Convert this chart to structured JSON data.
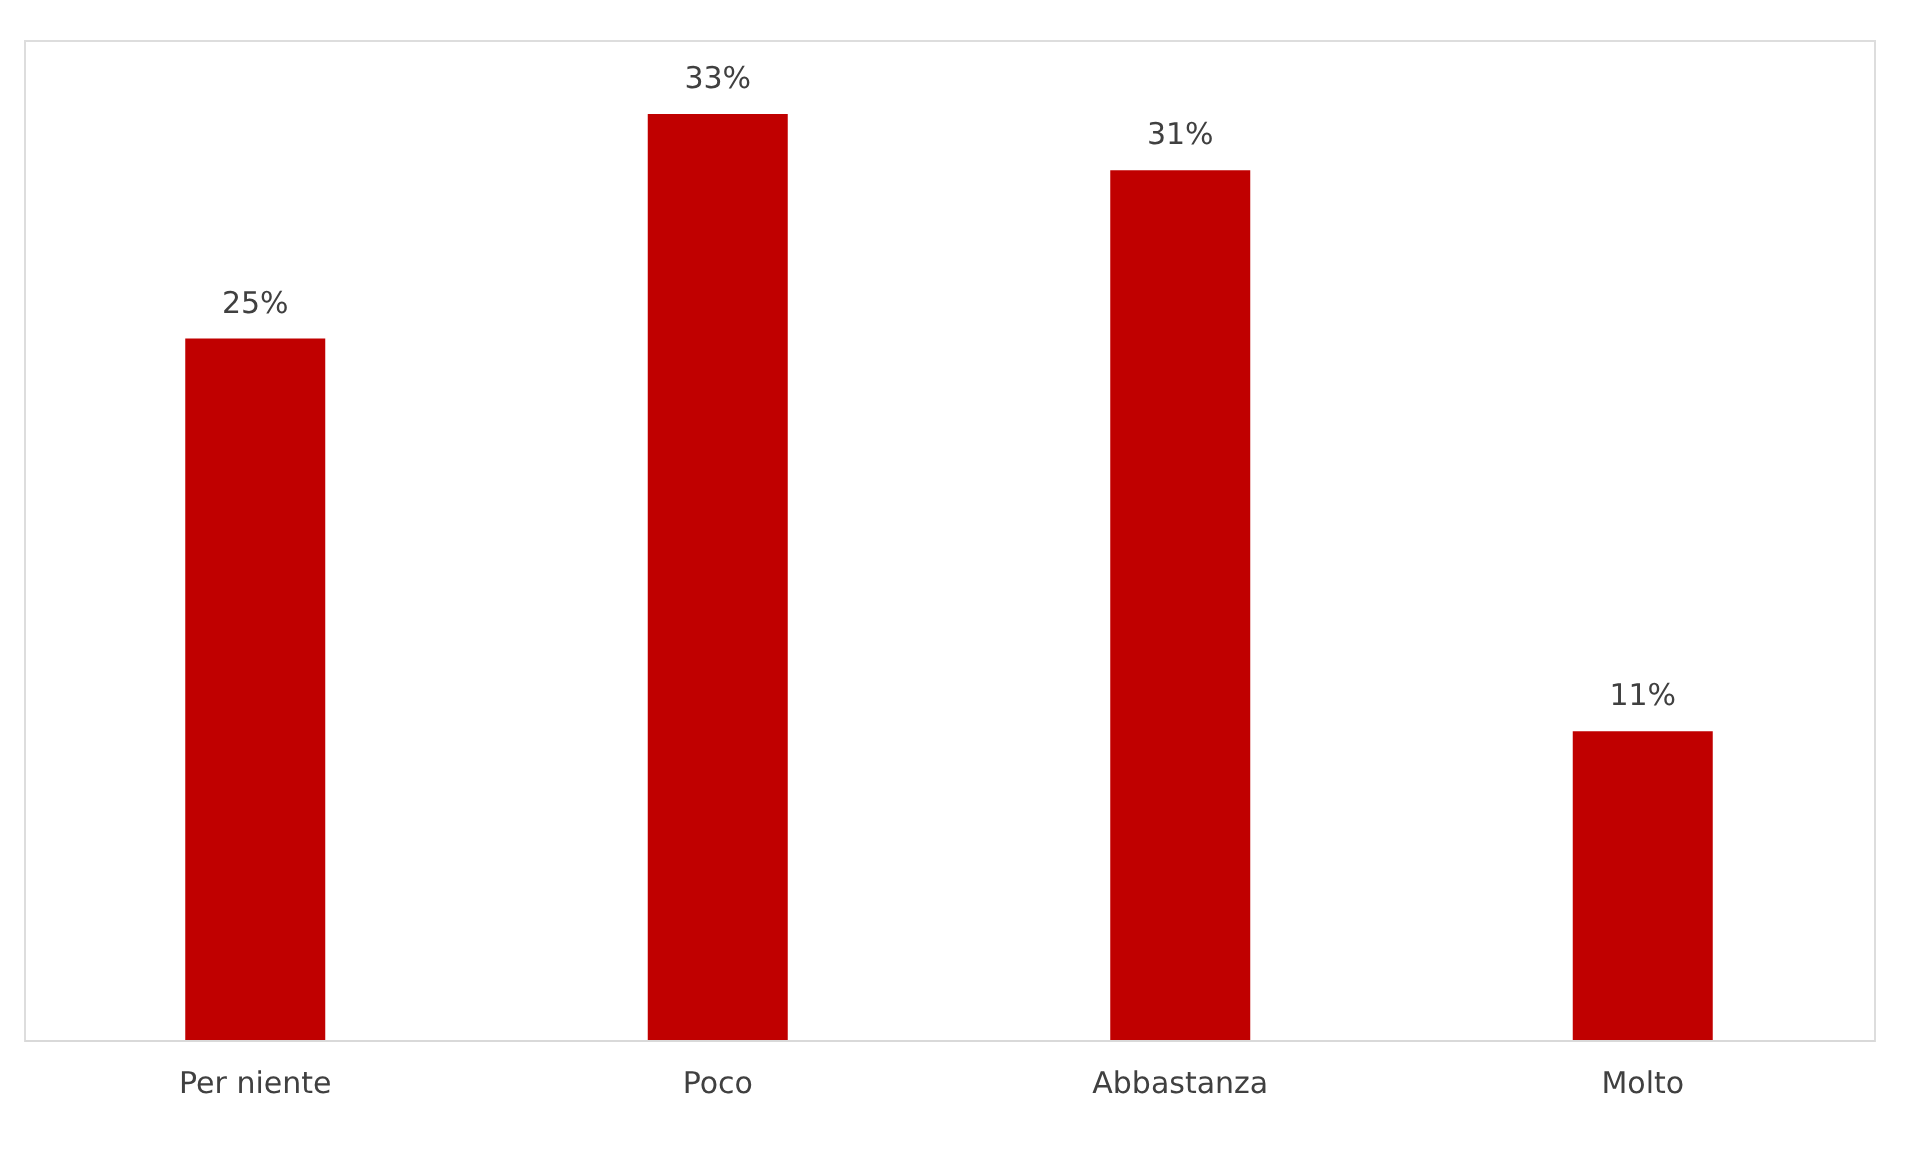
{
  "chart_data": {
    "type": "bar",
    "categories": [
      "Per niente",
      "Poco",
      "Abbastanza",
      "Molto"
    ],
    "values": [
      25,
      33,
      31,
      11
    ],
    "value_labels": [
      "25%",
      "33%",
      "31%",
      "11%"
    ],
    "color": "#c00000",
    "grid": false
  }
}
